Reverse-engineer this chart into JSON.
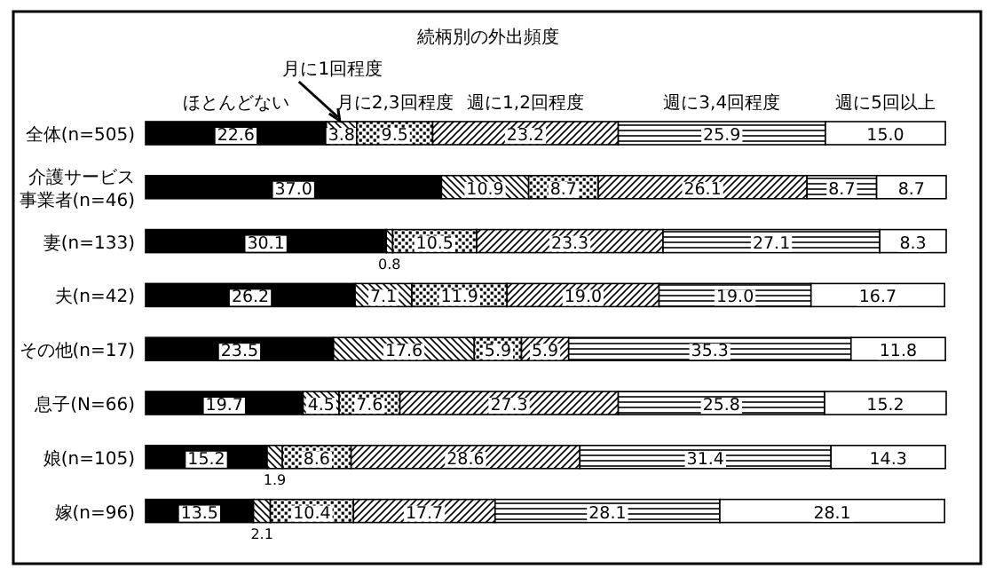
{
  "chart_data": {
    "type": "bar",
    "orientation": "horizontal",
    "stacked": true,
    "title": "続柄別の外出頻度",
    "legend": "top",
    "categories": [
      "全体(n=505)",
      "介護サービス事業者(n=46)",
      "妻(n=133)",
      "夫(n=42)",
      "その他(n=17)",
      "息子(N=66)",
      "娘(n=105)",
      "嫁(n=96)"
    ],
    "series": [
      {
        "name": "ほとんどない",
        "color": "#000000",
        "values": [
          22.6,
          37.0,
          30.1,
          26.2,
          23.5,
          19.7,
          15.2,
          13.5
        ],
        "value_labels": [
          "22.6",
          "37.0",
          "30.1",
          "26.2",
          "23.5",
          "19.7",
          "15.2",
          "13.5"
        ]
      },
      {
        "name": "月に1回程度",
        "color": "#000000",
        "values": [
          3.8,
          10.9,
          0.8,
          7.1,
          17.6,
          4.5,
          1.9,
          2.1
        ],
        "value_labels": [
          "3.8",
          "10.9",
          "0.8",
          "7.1",
          "17.6",
          "4.5",
          "1.9",
          "2.1"
        ]
      },
      {
        "name": "月に2,3回程度",
        "color": "#000000",
        "values": [
          9.5,
          8.7,
          10.5,
          11.9,
          5.9,
          7.6,
          8.6,
          10.4
        ],
        "value_labels": [
          "9.5",
          "8.7",
          "10.5",
          "11.9",
          "5.9",
          "7.6",
          "8.6",
          "10.4"
        ]
      },
      {
        "name": "週に1,2回程度",
        "color": "#000000",
        "values": [
          23.2,
          26.1,
          23.3,
          19.0,
          5.9,
          27.3,
          28.6,
          17.7
        ],
        "value_labels": [
          "23.2",
          "26.1",
          "23.3",
          "19.0",
          "5.9",
          "27.3",
          "28.6",
          "17.7"
        ]
      },
      {
        "name": "週に3,4回程度",
        "color": "#000000",
        "values": [
          25.9,
          8.7,
          27.1,
          19.0,
          35.3,
          25.8,
          31.4,
          28.1
        ],
        "value_labels": [
          "25.9",
          "8.7",
          "27.1",
          "19.0",
          "35.3",
          "25.8",
          "31.4",
          "28.1"
        ]
      },
      {
        "name": "週に5回以上",
        "color": "#ffffff",
        "values": [
          15.0,
          8.7,
          8.3,
          16.7,
          11.8,
          15.2,
          14.3,
          28.1
        ],
        "value_labels": [
          "15.0",
          "8.7",
          "8.3",
          "16.7",
          "11.8",
          "15.2",
          "14.3",
          "28.1"
        ]
      }
    ]
  }
}
